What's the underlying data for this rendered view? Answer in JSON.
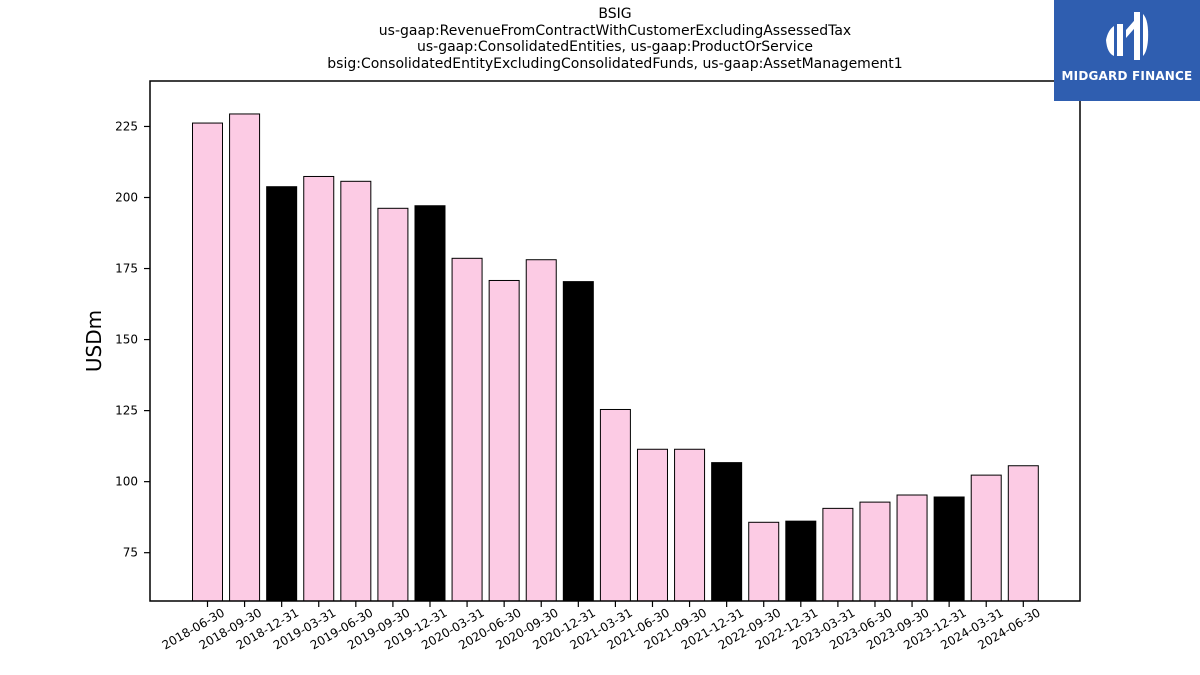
{
  "chart_data": {
    "type": "bar",
    "title": "BSIG",
    "subtitle": [
      "us-gaap:RevenueFromContractWithCustomerExcludingAssessedTax",
      "us-gaap:ConsolidatedEntities, us-gaap:ProductOrService",
      "bsig:ConsolidatedEntityExcludingConsolidatedFunds, us-gaap:AssetManagement1"
    ],
    "xlabel": "",
    "ylabel": "USDm",
    "ylim": [
      58,
      241
    ],
    "yticks": [
      75,
      100,
      125,
      150,
      175,
      200,
      225
    ],
    "grid": false,
    "categories": [
      "2018-06-30",
      "2018-09-30",
      "2018-12-31",
      "2019-03-31",
      "2019-06-30",
      "2019-09-30",
      "2019-12-31",
      "2020-03-31",
      "2020-06-30",
      "2020-09-30",
      "2020-12-31",
      "2021-03-31",
      "2021-06-30",
      "2021-09-30",
      "2021-12-31",
      "2022-09-30",
      "2022-12-31",
      "2023-03-31",
      "2023-06-30",
      "2023-09-30",
      "2023-12-31",
      "2024-03-31",
      "2024-06-30"
    ],
    "values": [
      226.2,
      229.4,
      203.8,
      207.4,
      205.7,
      196.2,
      197.1,
      178.6,
      170.8,
      178.1,
      170.4,
      125.4,
      111.4,
      111.4,
      106.7,
      85.7,
      86.1,
      90.6,
      92.8,
      95.3,
      94.6,
      102.3,
      105.6
    ],
    "bar_colors": [
      "#fccbe4",
      "#fccbe4",
      "#000000",
      "#fccbe4",
      "#fccbe4",
      "#fccbe4",
      "#000000",
      "#fccbe4",
      "#fccbe4",
      "#fccbe4",
      "#000000",
      "#fccbe4",
      "#fccbe4",
      "#fccbe4",
      "#000000",
      "#fccbe4",
      "#000000",
      "#fccbe4",
      "#fccbe4",
      "#fccbe4",
      "#000000",
      "#fccbe4",
      "#fccbe4"
    ],
    "edge_color": "#000000"
  },
  "logo": {
    "text": "MIDGARD FINANCE",
    "background": "#2f5eb0"
  }
}
